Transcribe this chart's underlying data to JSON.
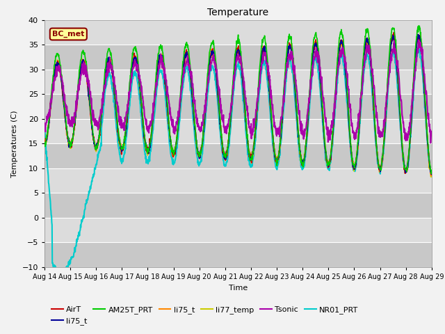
{
  "title": "Temperature",
  "xlabel": "Time",
  "ylabel": "Temperatures (C)",
  "ylim": [
    -10,
    40
  ],
  "xlim": [
    0,
    15
  ],
  "annotation_text": "BC_met",
  "annotation_color": "#8B0000",
  "annotation_bg": "#FFFF99",
  "bg_color": "#DCDCDC",
  "band_color_light": "#DCDCDC",
  "band_color_dark": "#C8C8C8",
  "grid_color": "#BBBBBB",
  "series": {
    "AirT": {
      "color": "#CC0000",
      "lw": 1.2
    },
    "li75_t_b": {
      "color": "#000099",
      "lw": 1.2
    },
    "AM25T_PRT": {
      "color": "#00CC00",
      "lw": 1.2
    },
    "li75_t": {
      "color": "#FF8800",
      "lw": 1.2
    },
    "li77_temp": {
      "color": "#CCCC00",
      "lw": 1.2
    },
    "Tsonic": {
      "color": "#AA00AA",
      "lw": 1.5
    },
    "NR01_PRT": {
      "color": "#00CCCC",
      "lw": 1.5
    }
  },
  "legend": [
    {
      "label": "AirT",
      "color": "#CC0000"
    },
    {
      "label": "li75_t",
      "color": "#000099"
    },
    {
      "label": "AM25T_PRT",
      "color": "#00CC00"
    },
    {
      "label": "li75_t",
      "color": "#FF8800"
    },
    {
      "label": "li77_temp",
      "color": "#CCCC00"
    },
    {
      "label": "Tsonic",
      "color": "#AA00AA"
    },
    {
      "label": "NR01_PRT",
      "color": "#00CCCC"
    }
  ],
  "xtick_labels": [
    "Aug 14",
    "Aug 15",
    "Aug 16",
    "Aug 17",
    "Aug 18",
    "Aug 19",
    "Aug 20",
    "Aug 21",
    "Aug 22",
    "Aug 23",
    "Aug 24",
    "Aug 25",
    "Aug 26",
    "Aug 27",
    "Aug 28",
    "Aug 29"
  ],
  "xtick_positions": [
    0,
    1,
    2,
    3,
    4,
    5,
    6,
    7,
    8,
    9,
    10,
    11,
    12,
    13,
    14,
    15
  ],
  "yticks": [
    -10,
    -5,
    0,
    5,
    10,
    15,
    20,
    25,
    30,
    35,
    40
  ],
  "figsize": [
    6.4,
    4.8
  ],
  "dpi": 100
}
